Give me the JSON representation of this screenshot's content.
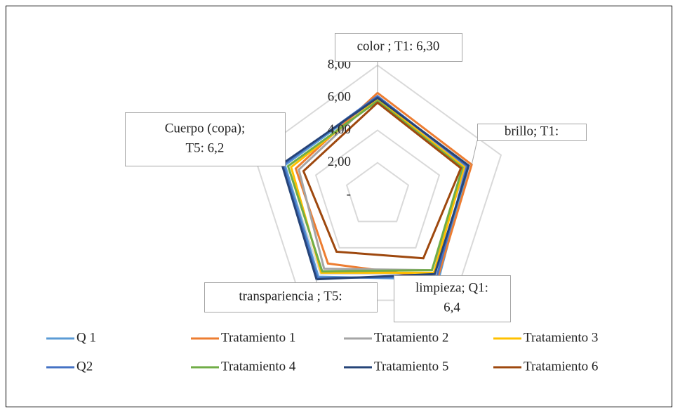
{
  "chart_data": {
    "type": "radar",
    "categories": [
      "color",
      "brillo",
      "limpieza",
      "transpariencia",
      "Cuerpo (copa)"
    ],
    "series": [
      {
        "name": "Q 1",
        "color": "#5b9bd5",
        "values": [
          6.0,
          5.9,
          6.4,
          6.2,
          6.0
        ]
      },
      {
        "name": "Tratamiento 1",
        "color": "#ed7d31",
        "values": [
          6.3,
          6.1,
          6.3,
          5.2,
          5.3
        ]
      },
      {
        "name": "Tratamiento 2",
        "color": "#a5a5a5",
        "values": [
          6.1,
          5.7,
          5.7,
          5.6,
          5.1
        ]
      },
      {
        "name": "Tratamiento 3",
        "color": "#ffc000",
        "values": [
          5.9,
          5.6,
          5.9,
          5.9,
          5.6
        ]
      },
      {
        "name": "Q2",
        "color": "#4472c4",
        "values": [
          6.1,
          5.8,
          6.2,
          6.3,
          6.1
        ]
      },
      {
        "name": "Tratamiento 4",
        "color": "#70ad47",
        "values": [
          5.8,
          5.5,
          5.7,
          5.8,
          5.8
        ]
      },
      {
        "name": "Tratamiento 5",
        "color": "#264478",
        "values": [
          6.0,
          5.9,
          6.0,
          6.4,
          6.2
        ]
      },
      {
        "name": "Tratamiento 6",
        "color": "#9e480e",
        "values": [
          5.7,
          5.4,
          4.8,
          4.3,
          4.8
        ]
      }
    ],
    "ylim": [
      0,
      8
    ],
    "yticks": [
      {
        "value": 0,
        "label": "-"
      },
      {
        "value": 2,
        "label": "2,00"
      },
      {
        "value": 4,
        "label": "4,00"
      },
      {
        "value": 6,
        "label": "6,00"
      },
      {
        "value": 8,
        "label": "8,00"
      }
    ],
    "grid": true,
    "legend": "bottom",
    "annotations": [
      [
        "color ; T1: 6,30"
      ],
      [
        "brillo; T1:"
      ],
      [
        "limpieza; Q1:",
        "6,4"
      ],
      [
        "transpariencia ; T5:"
      ],
      [
        "Cuerpo (copa);",
        "T5: 6,2"
      ]
    ]
  }
}
